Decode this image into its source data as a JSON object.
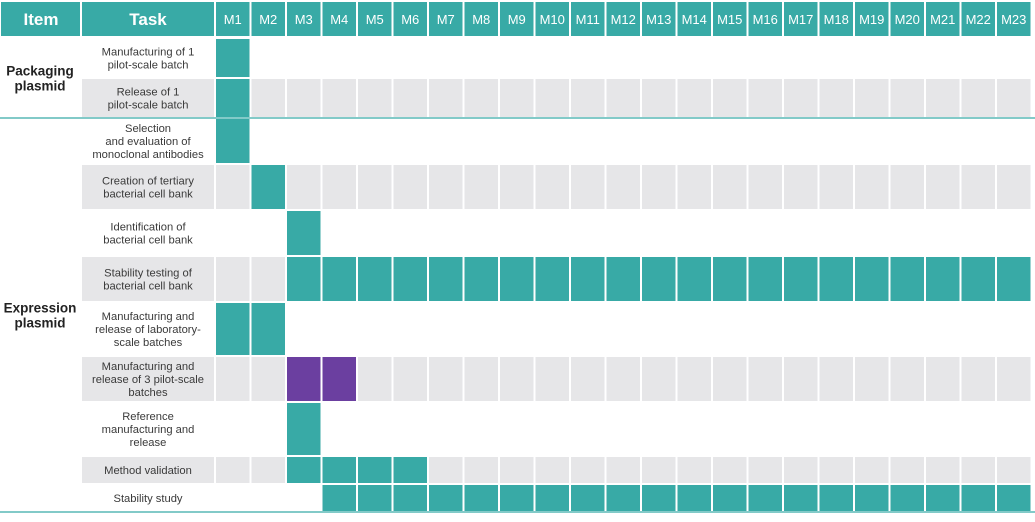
{
  "header": {
    "item_label": "Item",
    "task_label": "Task"
  },
  "colors": {
    "header_bg": "#38aaa6",
    "header_text": "#ffffff",
    "active": "#38aaa6",
    "highlight": "#6b3fa0",
    "empty_cell": "#e6e6e8",
    "row_band": "#e6e6e8",
    "divider": "#38aaa6",
    "text": "#3a3a3a"
  },
  "chart_data": {
    "type": "table",
    "months": [
      "M1",
      "M2",
      "M3",
      "M4",
      "M5",
      "M6",
      "M7",
      "M8",
      "M9",
      "M10",
      "M11",
      "M12",
      "M13",
      "M14",
      "M15",
      "M16",
      "M17",
      "M18",
      "M19",
      "M20",
      "M21",
      "M22",
      "M23"
    ],
    "groups": [
      {
        "item": "Packaging plasmid",
        "tasks": [
          {
            "name": "Manufacturing of 1 pilot-scale batch",
            "active": [
              1
            ],
            "highlight": []
          },
          {
            "name": "Release of 1 pilot-scale batch",
            "active": [
              1
            ],
            "highlight": []
          }
        ]
      },
      {
        "item": "Expression plasmid",
        "tasks": [
          {
            "name": "Selection and evaluation of monoclonal antibodies",
            "active": [
              1
            ],
            "highlight": []
          },
          {
            "name": "Creation of tertiary bacterial cell bank",
            "active": [
              2
            ],
            "highlight": []
          },
          {
            "name": "Identification of bacterial cell bank",
            "active": [
              3
            ],
            "highlight": []
          },
          {
            "name": "Stability testing of bacterial cell bank",
            "active": [
              3,
              4,
              5,
              6,
              7,
              8,
              9,
              10,
              11,
              12,
              13,
              14,
              15,
              16,
              17,
              18,
              19,
              20,
              21,
              22,
              23
            ],
            "highlight": []
          },
          {
            "name": "Manufacturing and release of laboratory-scale batches",
            "active": [
              1,
              2
            ],
            "highlight": []
          },
          {
            "name": "Manufacturing and release of 3 pilot-scale batches",
            "active": [],
            "highlight": [
              3,
              4
            ]
          },
          {
            "name": "Reference manufacturing and release",
            "active": [
              3
            ],
            "highlight": []
          },
          {
            "name": "Method validation",
            "active": [
              3,
              4,
              5,
              6
            ],
            "highlight": []
          },
          {
            "name": "Stability study",
            "active": [
              4,
              5,
              6,
              7,
              8,
              9,
              10,
              11,
              12,
              13,
              14,
              15,
              16,
              17,
              18,
              19,
              20,
              21,
              22,
              23
            ],
            "highlight": []
          }
        ]
      }
    ]
  }
}
